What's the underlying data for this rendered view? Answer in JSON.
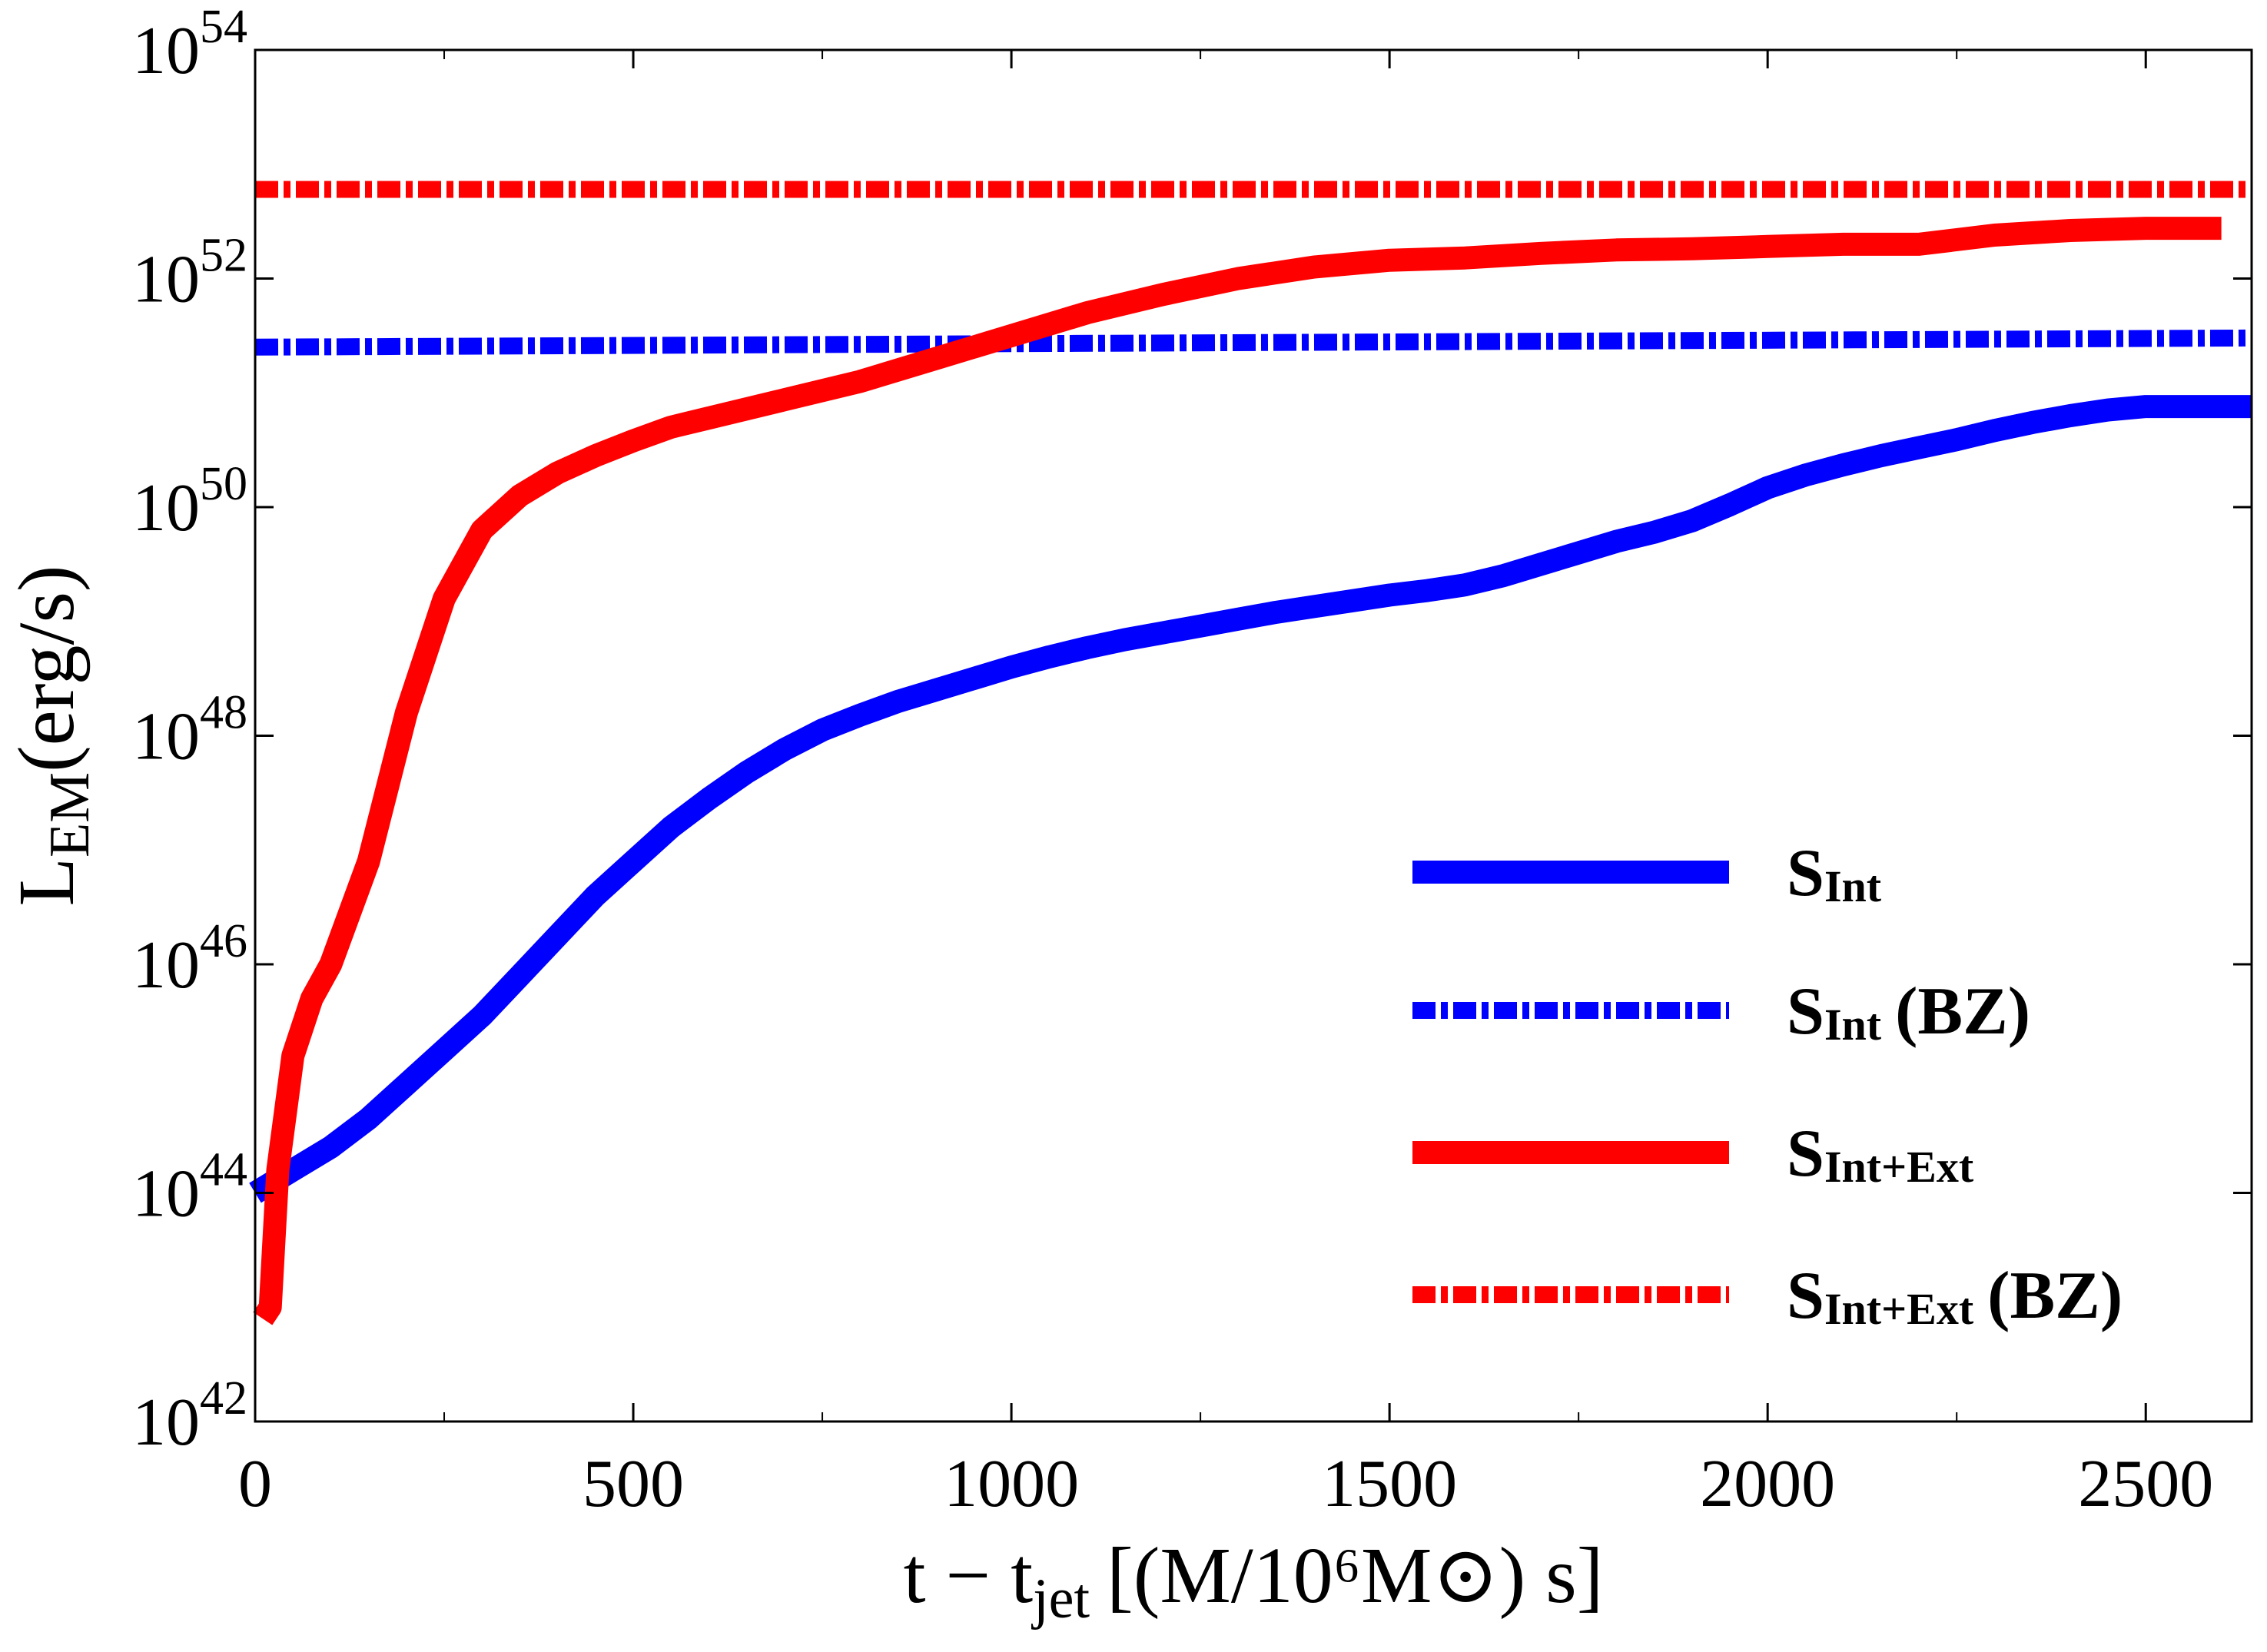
{
  "chart_data": {
    "type": "line",
    "xlabel": {
      "main": "t − t",
      "sub": "jet",
      "unit": "[(M/10⁶M⊙) s]"
    },
    "ylabel": {
      "main": "L",
      "sub": "EM",
      "unit": "(erg/s)"
    },
    "xlim": [
      0,
      2640
    ],
    "ylim_log10": [
      42,
      54
    ],
    "log_y": true,
    "grid": false,
    "legend_position": "lower-right",
    "x_ticks": [
      "0",
      "500",
      "1000",
      "1500",
      "2000",
      "2500"
    ],
    "y_ticks": [
      {
        "base": "10",
        "exp": "42"
      },
      {
        "base": "10",
        "exp": "44"
      },
      {
        "base": "10",
        "exp": "46"
      },
      {
        "base": "10",
        "exp": "48"
      },
      {
        "base": "10",
        "exp": "50"
      },
      {
        "base": "10",
        "exp": "52"
      },
      {
        "base": "10",
        "exp": "54"
      }
    ],
    "series": [
      {
        "name": "S",
        "name_sub": "Int",
        "name_suffix": "",
        "color": "#0000ff",
        "style": "solid",
        "x": [
          0,
          50,
          100,
          150,
          200,
          250,
          300,
          350,
          400,
          450,
          500,
          550,
          600,
          650,
          700,
          750,
          800,
          850,
          900,
          950,
          1000,
          1050,
          1100,
          1150,
          1200,
          1250,
          1300,
          1350,
          1400,
          1450,
          1500,
          1550,
          1600,
          1650,
          1700,
          1750,
          1800,
          1850,
          1900,
          1950,
          2000,
          2050,
          2100,
          2150,
          2200,
          2250,
          2300,
          2350,
          2400,
          2450,
          2500,
          2550,
          2600,
          2640
        ],
        "log10_y": [
          44.0,
          44.2,
          44.4,
          44.65,
          44.95,
          45.25,
          45.55,
          45.9,
          46.25,
          46.6,
          46.9,
          47.2,
          47.45,
          47.68,
          47.88,
          48.05,
          48.18,
          48.3,
          48.4,
          48.5,
          48.6,
          48.69,
          48.77,
          48.84,
          48.9,
          48.96,
          49.02,
          49.08,
          49.13,
          49.18,
          49.23,
          49.27,
          49.32,
          49.4,
          49.5,
          49.6,
          49.7,
          49.78,
          49.88,
          50.02,
          50.17,
          50.28,
          50.37,
          50.45,
          50.52,
          50.59,
          50.67,
          50.74,
          50.8,
          50.85,
          50.88,
          50.88,
          50.88,
          50.88
        ]
      },
      {
        "name": "S",
        "name_sub": "Int",
        "name_suffix": "(BZ)",
        "color": "#0000ff",
        "style": "dashdot",
        "x": [
          0,
          2640
        ],
        "log10_y": [
          51.4,
          51.48
        ]
      },
      {
        "name": "S",
        "name_sub": "Int+Ext",
        "name_suffix": "",
        "color": "#ff0000",
        "style": "solid",
        "x": [
          10,
          20,
          30,
          50,
          75,
          100,
          150,
          200,
          250,
          300,
          350,
          400,
          450,
          500,
          550,
          600,
          700,
          800,
          900,
          1000,
          1100,
          1200,
          1300,
          1400,
          1500,
          1600,
          1700,
          1800,
          1900,
          2000,
          2100,
          2200,
          2300,
          2400,
          2500,
          2600
        ],
        "log10_y": [
          42.9,
          43.0,
          44.2,
          45.2,
          45.7,
          46.0,
          46.9,
          48.2,
          49.2,
          49.8,
          50.1,
          50.3,
          50.45,
          50.58,
          50.7,
          50.78,
          50.94,
          51.1,
          51.3,
          51.5,
          51.7,
          51.86,
          52.0,
          52.1,
          52.16,
          52.18,
          52.22,
          52.25,
          52.26,
          52.28,
          52.3,
          52.3,
          52.38,
          52.42,
          52.44,
          52.44
        ]
      },
      {
        "name": "S",
        "name_sub": "Int+Ext",
        "name_suffix": "(BZ)",
        "color": "#ff0000",
        "style": "dashdot",
        "x": [
          0,
          2640
        ],
        "log10_y": [
          52.78,
          52.78
        ]
      }
    ]
  }
}
